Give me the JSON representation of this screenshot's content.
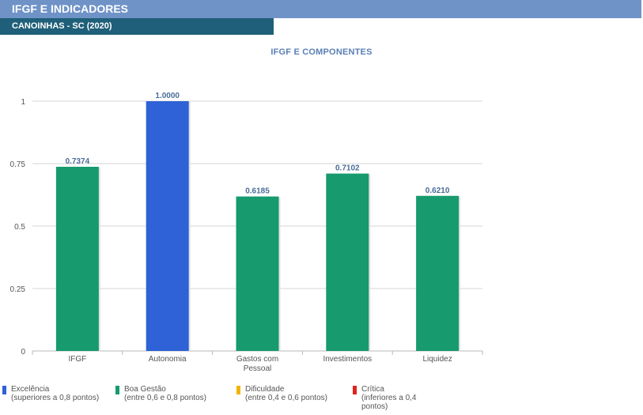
{
  "header": {
    "title": "IFGF E INDICADORES",
    "subtitle": "CANOINHAS - SC (2020)"
  },
  "chart_data": {
    "type": "bar",
    "title": "IFGF E COMPONENTES",
    "categories": [
      "IFGF",
      "Autonomia",
      "Gastos com\nPessoal",
      "Investimentos",
      "Liquidez"
    ],
    "values": [
      0.7374,
      1.0,
      0.6185,
      0.7102,
      0.621
    ],
    "value_labels": [
      "0.7374",
      "1.0000",
      "0.6185",
      "0.7102",
      "0.6210"
    ],
    "bar_colors": [
      "#179a6e",
      "#2e62d6",
      "#179a6e",
      "#179a6e",
      "#179a6e"
    ],
    "ylim": [
      0,
      1
    ],
    "yticks": [
      "0",
      "0.25",
      "0.5",
      "0.75",
      "1"
    ],
    "ytick_values": [
      0,
      0.25,
      0.5,
      0.75,
      1
    ],
    "grid": true
  },
  "legend": [
    {
      "label": "Excelência",
      "sublabel": "(superiores a 0,8 pontos)",
      "color": "#2e62d6"
    },
    {
      "label": "Boa Gestão",
      "sublabel": "(entre 0,6 e 0,8 pontos)",
      "color": "#179a6e"
    },
    {
      "label": "Dificuldade",
      "sublabel": "(entre 0,4 e 0,6 pontos)",
      "color": "#f0b400"
    },
    {
      "label": "Crítica",
      "sublabel": "(inferiores a 0,4\npontos)",
      "color": "#e0231d"
    }
  ]
}
